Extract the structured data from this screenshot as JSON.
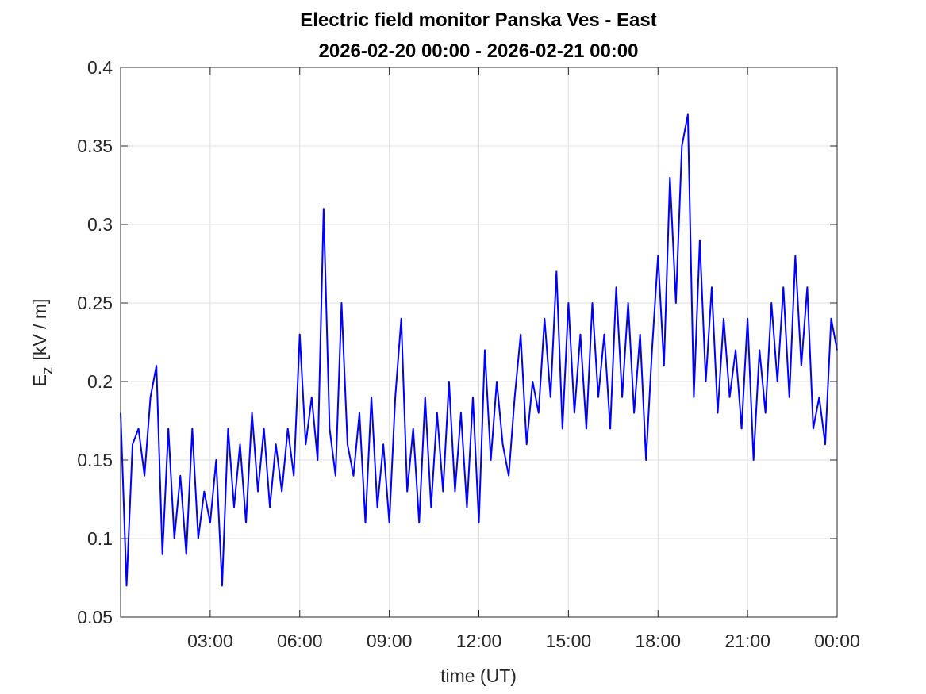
{
  "chart_data": {
    "type": "line",
    "title": "Electric field monitor Panska Ves - East",
    "subtitle": "2026-02-20 00:00 - 2026-02-21 00:00",
    "xlabel": "time (UT)",
    "ylabel": [
      "E",
      "z",
      "[kV / m]"
    ],
    "xlim": [
      0,
      24
    ],
    "xticks": [
      {
        "value": 3,
        "label": "03:00"
      },
      {
        "value": 6,
        "label": "06:00"
      },
      {
        "value": 9,
        "label": "09:00"
      },
      {
        "value": 12,
        "label": "12:00"
      },
      {
        "value": 15,
        "label": "15:00"
      },
      {
        "value": 18,
        "label": "18:00"
      },
      {
        "value": 21,
        "label": "21:00"
      },
      {
        "value": 24,
        "label": "00:00"
      }
    ],
    "ylim": [
      0.05,
      0.4
    ],
    "yticks": [
      0.05,
      0.1,
      0.15,
      0.2,
      0.25,
      0.3,
      0.35,
      0.4
    ],
    "grid": true,
    "x": [
      0,
      0.2,
      0.4,
      0.6,
      0.8,
      1,
      1.2,
      1.4,
      1.6,
      1.8,
      2,
      2.2,
      2.4,
      2.6,
      2.8,
      3,
      3.2,
      3.4,
      3.6,
      3.8,
      4,
      4.2,
      4.4,
      4.6,
      4.8,
      5,
      5.2,
      5.4,
      5.6,
      5.8,
      6,
      6.2,
      6.4,
      6.6,
      6.8,
      7,
      7.2,
      7.4,
      7.6,
      7.8,
      8,
      8.2,
      8.4,
      8.6,
      8.8,
      9,
      9.2,
      9.4,
      9.6,
      9.8,
      10,
      10.2,
      10.4,
      10.6,
      10.8,
      11,
      11.2,
      11.4,
      11.6,
      11.8,
      12,
      12.2,
      12.4,
      12.6,
      12.8,
      13,
      13.2,
      13.4,
      13.6,
      13.8,
      14,
      14.2,
      14.4,
      14.6,
      14.8,
      15,
      15.2,
      15.4,
      15.6,
      15.8,
      16,
      16.2,
      16.4,
      16.6,
      16.8,
      17,
      17.2,
      17.4,
      17.6,
      17.8,
      18,
      18.2,
      18.4,
      18.6,
      18.8,
      19,
      19.2,
      19.4,
      19.6,
      19.8,
      20,
      20.2,
      20.4,
      20.6,
      20.8,
      21,
      21.2,
      21.4,
      21.6,
      21.8,
      22,
      22.2,
      22.4,
      22.6,
      22.8,
      23,
      23.2,
      23.4,
      23.6,
      23.8,
      24
    ],
    "series": [
      {
        "color": "#0000ff",
        "values": [
          0.18,
          0.07,
          0.16,
          0.17,
          0.14,
          0.19,
          0.21,
          0.09,
          0.17,
          0.1,
          0.14,
          0.09,
          0.17,
          0.1,
          0.13,
          0.11,
          0.15,
          0.07,
          0.17,
          0.12,
          0.16,
          0.11,
          0.18,
          0.13,
          0.17,
          0.12,
          0.16,
          0.13,
          0.17,
          0.14,
          0.23,
          0.16,
          0.19,
          0.15,
          0.31,
          0.17,
          0.14,
          0.25,
          0.16,
          0.14,
          0.18,
          0.11,
          0.19,
          0.12,
          0.16,
          0.11,
          0.19,
          0.24,
          0.13,
          0.17,
          0.11,
          0.19,
          0.12,
          0.18,
          0.13,
          0.2,
          0.13,
          0.18,
          0.12,
          0.19,
          0.11,
          0.22,
          0.15,
          0.2,
          0.16,
          0.14,
          0.19,
          0.23,
          0.16,
          0.2,
          0.18,
          0.24,
          0.19,
          0.27,
          0.17,
          0.25,
          0.18,
          0.23,
          0.17,
          0.25,
          0.19,
          0.23,
          0.17,
          0.26,
          0.19,
          0.25,
          0.18,
          0.23,
          0.15,
          0.22,
          0.28,
          0.21,
          0.33,
          0.25,
          0.35,
          0.37,
          0.19,
          0.29,
          0.2,
          0.26,
          0.18,
          0.24,
          0.19,
          0.22,
          0.17,
          0.24,
          0.15,
          0.22,
          0.18,
          0.25,
          0.2,
          0.26,
          0.19,
          0.28,
          0.21,
          0.26,
          0.17,
          0.19,
          0.16,
          0.24,
          0.22
        ]
      }
    ]
  }
}
